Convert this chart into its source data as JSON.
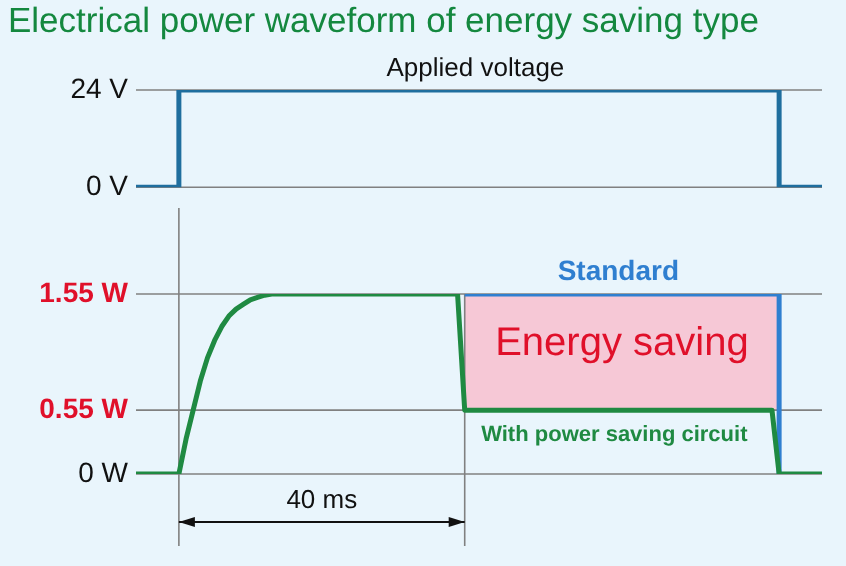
{
  "chart_data": [
    {
      "type": "line",
      "title": "Electrical power waveform of energy saving type",
      "categories": [
        null,
        null,
        null,
        null,
        null,
        null,
        null,
        null,
        null,
        null,
        null,
        null,
        null,
        null,
        null,
        null,
        null,
        null,
        null,
        null,
        null,
        null,
        null,
        null,
        null,
        null,
        null,
        null,
        null,
        null,
        null,
        null,
        null,
        null,
        null,
        null,
        null,
        null,
        null,
        null,
        null,
        null,
        null,
        null,
        null,
        null,
        null,
        null,
        null,
        null,
        null,
        null,
        null,
        null,
        null,
        null,
        null,
        null,
        null,
        null,
        null,
        null,
        null,
        null,
        null,
        null,
        null,
        null,
        null,
        null,
        null,
        null,
        null,
        null,
        null,
        null,
        null,
        null,
        null,
        null,
        null,
        null,
        null,
        null,
        null,
        null,
        null,
        null,
        null,
        null,
        null,
        null,
        null,
        null,
        null,
        null,
        null
      ],
      "ylim": [
        0,
        24
      ],
      "yticks": [
        {
          "value": 0,
          "label": "0 V"
        },
        {
          "value": 24,
          "label": "24 V"
        }
      ],
      "tick_labels": "y",
      "grid": "y",
      "legend": false,
      "marker": "none",
      "line_style": "solid",
      "series": [
        {
          "name": "Applied voltage",
          "type": "step",
          "color": "#1f6e9e",
          "values": [
            0,
            0,
            0,
            0,
            0,
            0,
            24,
            24,
            24,
            24,
            24,
            24,
            24,
            24,
            24,
            24,
            24,
            24,
            24,
            24,
            24,
            24,
            24,
            24,
            24,
            24,
            24,
            24,
            24,
            24,
            24,
            24,
            24,
            24,
            24,
            24,
            24,
            24,
            24,
            24,
            24,
            24,
            24,
            24,
            24,
            24,
            24,
            24,
            24,
            24,
            24,
            24,
            24,
            24,
            24,
            24,
            24,
            24,
            24,
            24,
            24,
            24,
            24,
            24,
            24,
            24,
            24,
            24,
            24,
            24,
            24,
            24,
            24,
            24,
            24,
            24,
            24,
            24,
            24,
            24,
            24,
            24,
            24,
            24,
            24,
            24,
            24,
            24,
            24,
            24,
            0,
            0,
            0,
            0,
            0,
            0,
            0
          ]
        }
      ]
    },
    {
      "type": "line",
      "categories": [
        null,
        null,
        null,
        null,
        null,
        null,
        null,
        null,
        null,
        null,
        null,
        null,
        null,
        null,
        null,
        null,
        null,
        null,
        null,
        null,
        null,
        null,
        null,
        null,
        null,
        null,
        null,
        null,
        null,
        null,
        null,
        null,
        null,
        null,
        null,
        null,
        null,
        null,
        null,
        null,
        null,
        null,
        null,
        null,
        null,
        null,
        null,
        null,
        null,
        null,
        null,
        null,
        null,
        null,
        null,
        null,
        null,
        null,
        null,
        null,
        null,
        null,
        null,
        null,
        null,
        null,
        null,
        null,
        null,
        null,
        null,
        null,
        null,
        null,
        null,
        null,
        null,
        null,
        null,
        null,
        null,
        null,
        null,
        null,
        null,
        null,
        null,
        null,
        null,
        null,
        null,
        null,
        null,
        null,
        null,
        null,
        null
      ],
      "ylim": [
        0,
        1.55
      ],
      "yticks": [
        {
          "value": 0,
          "label": "0 W"
        },
        {
          "value": 0.55,
          "label": "0.55 W"
        },
        {
          "value": 1.55,
          "label": "1.55 W"
        }
      ],
      "tick_labels": "y",
      "grid": "y",
      "legend": false,
      "marker": "none",
      "line_style": "solid",
      "series": [
        {
          "name": "Standard",
          "type": "step",
          "color": "#2f7fd0",
          "values": [
            null,
            null,
            null,
            null,
            null,
            null,
            null,
            null,
            null,
            null,
            null,
            null,
            null,
            null,
            null,
            null,
            null,
            null,
            null,
            null,
            null,
            null,
            null,
            null,
            null,
            null,
            null,
            null,
            null,
            null,
            null,
            null,
            null,
            null,
            null,
            null,
            null,
            null,
            null,
            null,
            null,
            null,
            null,
            null,
            null,
            null,
            1.55,
            1.55,
            1.55,
            1.55,
            1.55,
            1.55,
            1.55,
            1.55,
            1.55,
            1.55,
            1.55,
            1.55,
            1.55,
            1.55,
            1.55,
            1.55,
            1.55,
            1.55,
            1.55,
            1.55,
            1.55,
            1.55,
            1.55,
            1.55,
            1.55,
            1.55,
            1.55,
            1.55,
            1.55,
            1.55,
            1.55,
            1.55,
            1.55,
            1.55,
            1.55,
            1.55,
            1.55,
            1.55,
            1.55,
            1.55,
            1.55,
            1.55,
            1.55,
            1.55,
            0,
            null,
            null,
            null,
            null,
            null,
            null
          ]
        },
        {
          "name": "With power saving circuit",
          "color": "#1f8a42",
          "values": [
            0,
            0,
            0,
            0,
            0,
            0,
            0,
            0.3,
            0.55,
            0.8,
            1,
            1.15,
            1.27,
            1.36,
            1.42,
            1.46,
            1.5,
            1.52,
            1.54,
            1.55,
            1.55,
            1.55,
            1.55,
            1.55,
            1.55,
            1.55,
            1.55,
            1.55,
            1.55,
            1.55,
            1.55,
            1.55,
            1.55,
            1.55,
            1.55,
            1.55,
            1.55,
            1.55,
            1.55,
            1.55,
            1.55,
            1.55,
            1.55,
            1.55,
            1.55,
            1.55,
            0.55,
            0.55,
            0.55,
            0.55,
            0.55,
            0.55,
            0.55,
            0.55,
            0.55,
            0.55,
            0.55,
            0.55,
            0.55,
            0.55,
            0.55,
            0.55,
            0.55,
            0.55,
            0.55,
            0.55,
            0.55,
            0.55,
            0.55,
            0.55,
            0.55,
            0.55,
            0.55,
            0.55,
            0.55,
            0.55,
            0.55,
            0.55,
            0.55,
            0.55,
            0.55,
            0.55,
            0.55,
            0.55,
            0.55,
            0.55,
            0.55,
            0.55,
            0.55,
            0.55,
            0,
            0,
            0,
            0,
            0,
            0,
            0
          ]
        }
      ],
      "bands": [
        {
          "axis": "y",
          "from": 0.55,
          "to": 1.55,
          "label": "Energy saving",
          "color": "#f6c8d6"
        }
      ],
      "annotations": [
        "40 ms"
      ]
    }
  ]
}
